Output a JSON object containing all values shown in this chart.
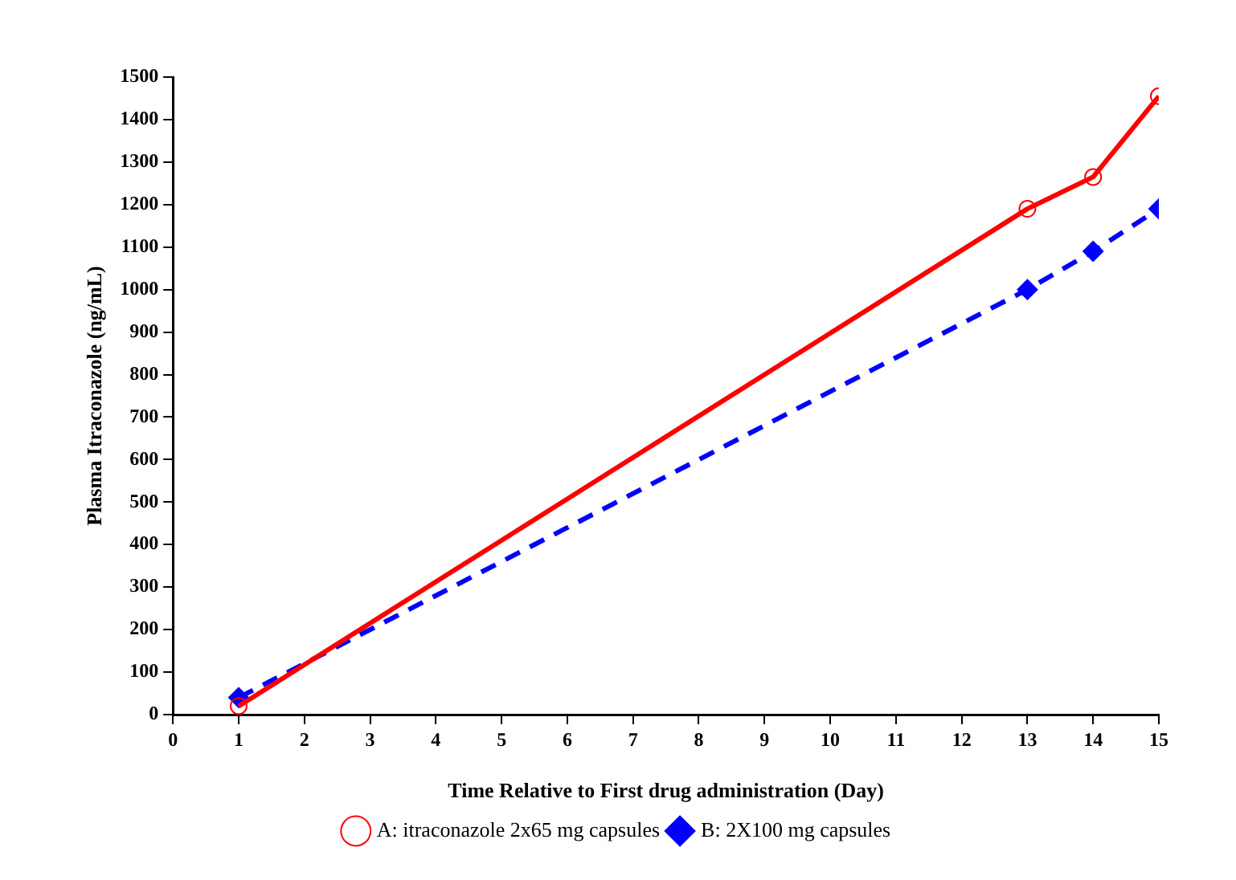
{
  "chart_data": {
    "type": "line",
    "xlabel": "Time Relative to First drug administration (Day)",
    "ylabel": "Plasma Itraconazole (ng/mL)",
    "xlim": [
      0,
      15
    ],
    "xticks": [
      0,
      1,
      2,
      3,
      4,
      5,
      6,
      7,
      8,
      9,
      10,
      11,
      12,
      13,
      14,
      15
    ],
    "ylim": [
      0,
      1500
    ],
    "yticks": [
      0,
      100,
      200,
      300,
      400,
      500,
      600,
      700,
      800,
      900,
      1000,
      1100,
      1200,
      1300,
      1400,
      1500
    ],
    "grid": false,
    "legend": "bottom",
    "series": [
      {
        "name": "A: itraconazole 2x65 mg capsules",
        "color": "#ff0000",
        "x": [
          1,
          13,
          14,
          15
        ],
        "values": [
          20,
          1190,
          1265,
          1455
        ],
        "marker": "circle",
        "line_style": "solid"
      },
      {
        "name": "B: 2X100 mg capsules",
        "color": "#0000ff",
        "x": [
          1,
          13,
          14,
          15
        ],
        "values": [
          40,
          1000,
          1090,
          1190
        ],
        "marker": "diamond",
        "line_style": "dashed"
      }
    ]
  }
}
